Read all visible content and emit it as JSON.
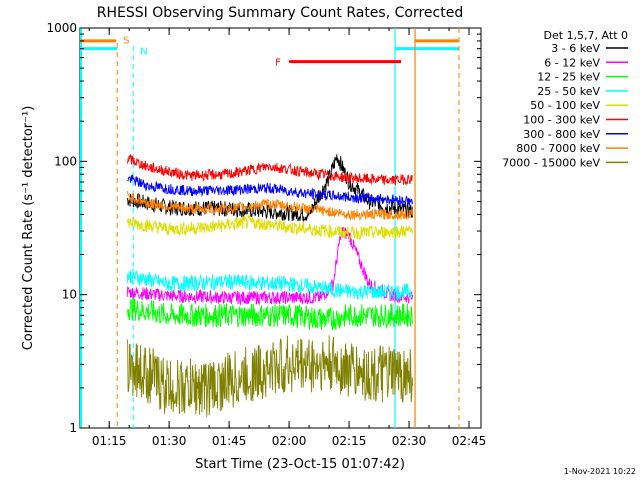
{
  "chart_data": {
    "type": "line",
    "title": "RHESSI Observing Summary Count Rates, Corrected",
    "xlabel": "Start Time (23-Oct-15 01:07:42)",
    "ylabel": "Corrected Count Rate (s⁻¹ detector⁻¹)",
    "y_scale": "log",
    "ylim": [
      1,
      1000
    ],
    "xlim": [
      "01:07:42",
      "02:48:00"
    ],
    "x_ticks": [
      "01:15",
      "01:30",
      "01:45",
      "02:00",
      "02:15",
      "02:30",
      "02:45"
    ],
    "y_ticks": [
      "1",
      "10",
      "100",
      "1000"
    ],
    "legend_title": "Det 1,5,7, Att 0",
    "legend_position": "right",
    "footer": "1-Nov-2021 10:22",
    "data_start": "01:19:30",
    "data_end": "02:31:00",
    "series": [
      {
        "name": "3 - 6 keV",
        "color": "#000000",
        "x": [
          "01:19:30",
          "01:30",
          "01:45",
          "01:55",
          "02:05",
          "02:10",
          "02:12",
          "02:15",
          "02:20",
          "02:25",
          "02:31"
        ],
        "values": [
          52,
          45,
          44,
          42,
          40,
          75,
          110,
          70,
          50,
          45,
          42
        ]
      },
      {
        "name": "6 - 12 keV",
        "color": "#ff00ff",
        "x": [
          "01:19:30",
          "01:30",
          "01:45",
          "02:00",
          "02:08",
          "02:11",
          "02:13",
          "02:15",
          "02:17",
          "02:20",
          "02:25",
          "02:31"
        ],
        "values": [
          10.5,
          9.8,
          9.5,
          9.5,
          9.5,
          12,
          30,
          28,
          20,
          12,
          10,
          9.5
        ]
      },
      {
        "name": "12 - 25 keV",
        "color": "#00ff00",
        "x": [
          "01:19:30",
          "01:30",
          "01:45",
          "02:00",
          "02:10",
          "02:15",
          "02:20",
          "02:31"
        ],
        "values": [
          8,
          7,
          7,
          7,
          6.5,
          7,
          7,
          7
        ]
      },
      {
        "name": "25 - 50 keV",
        "color": "#00ffff",
        "x": [
          "01:19:30",
          "01:30",
          "01:45",
          "02:00",
          "02:15",
          "02:31"
        ],
        "values": [
          14,
          12,
          12.5,
          12,
          10.5,
          10.5
        ]
      },
      {
        "name": "50 - 100 keV",
        "color": "#dddd00",
        "x": [
          "01:19:30",
          "01:30",
          "01:40",
          "01:50",
          "02:00",
          "02:15",
          "02:31"
        ],
        "values": [
          35,
          31,
          32,
          35,
          32,
          29,
          30
        ]
      },
      {
        "name": "100 - 300 keV",
        "color": "#ff0000",
        "x": [
          "01:19:30",
          "01:25",
          "01:35",
          "01:45",
          "01:55",
          "02:05",
          "02:15",
          "02:25",
          "02:31"
        ],
        "values": [
          105,
          90,
          78,
          80,
          92,
          82,
          75,
          72,
          74
        ]
      },
      {
        "name": "300 - 800 keV",
        "color": "#0000ff",
        "x": [
          "01:19:30",
          "01:25",
          "01:35",
          "01:45",
          "01:55",
          "02:05",
          "02:15",
          "02:25",
          "02:31"
        ],
        "values": [
          75,
          65,
          60,
          61,
          63,
          57,
          54,
          52,
          50
        ]
      },
      {
        "name": "800 - 7000 keV",
        "color": "#ff8000",
        "x": [
          "01:19:30",
          "01:25",
          "01:35",
          "01:45",
          "01:55",
          "02:05",
          "02:15",
          "02:25",
          "02:31"
        ],
        "values": [
          55,
          48,
          44,
          44,
          48,
          44,
          40,
          40,
          40
        ]
      },
      {
        "name": "7000 - 15000 keV",
        "color": "#808000",
        "x": [
          "01:19:30",
          "01:25",
          "01:30",
          "01:40",
          "01:50",
          "02:00",
          "02:10",
          "02:20",
          "02:31"
        ],
        "values": [
          3,
          2.5,
          2,
          2,
          2.5,
          3,
          3,
          2.5,
          2.5
        ]
      }
    ],
    "annotations": [
      {
        "label": "S",
        "color": "#ff8000",
        "x": "01:17"
      },
      {
        "label": "N",
        "color": "#00ffff",
        "x": "01:21"
      },
      {
        "label": "F",
        "color": "#ff0000",
        "x_start": "02:00",
        "x_end": "02:28"
      }
    ]
  }
}
